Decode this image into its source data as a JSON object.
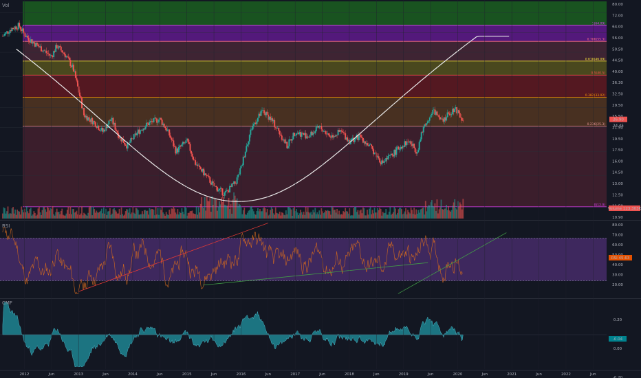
{
  "panes": {
    "price": {
      "label": "Vol"
    },
    "rsi": {
      "label": "RSI"
    },
    "cmf": {
      "label": "CMF"
    }
  },
  "colors": {
    "background": "#131722",
    "candle_up": "#26a69a",
    "candle_down": "#ef5350",
    "cup_curve": "#e8e8e8",
    "rsi_line": "#d2691e",
    "rsi_band": "#4a2d6e",
    "cmf_fill": "#1e7f8c",
    "trend_red": "#e53935",
    "trend_green": "#43a047"
  },
  "fib_levels": [
    {
      "label": "1(64.09)",
      "value": 64.09,
      "color": "#e040fb"
    },
    {
      "label": "0.786(55.3)",
      "value": 55.3,
      "color": "#ff6d8a"
    },
    {
      "label": "0.618(46.09)",
      "value": 46.09,
      "color": "#ffeb3b"
    },
    {
      "label": "0.5(40.5)",
      "value": 40.5,
      "color": "#ff5252"
    },
    {
      "label": "0.382(33.02)",
      "value": 33.02,
      "color": "#ff9800"
    },
    {
      "label": "0.236(25.3)",
      "value": 25.3,
      "color": "#ef9a9a"
    },
    {
      "label": "0(12.0)",
      "value": 12.0,
      "color": "#e040fb"
    }
  ],
  "price_axis": {
    "ticks": [
      "80.00",
      "72.00",
      "64.00",
      "56.00",
      "50.50",
      "44.50",
      "40.00",
      "36.30",
      "32.50",
      "29.50",
      "25.50",
      "21.50",
      "19.50",
      "17.50",
      "16.00",
      "14.50",
      "13.00",
      "12.50",
      "11.50",
      "10.90"
    ],
    "current_price": "26.90",
    "prev_price": "24.45",
    "volume_label": "Volume 123.303K"
  },
  "rsi_axis": {
    "ticks": [
      "80.00",
      "70.00",
      "60.00",
      "50.00",
      "40.00",
      "30.00",
      "20.00"
    ],
    "current": "RSI 45.63"
  },
  "cmf_axis": {
    "ticks": [
      "0.20",
      "0.00",
      "-0.20"
    ],
    "current": "-0.04"
  },
  "time_axis": [
    "2012",
    "Jun",
    "2013",
    "Jun",
    "2014",
    "Jun",
    "2015",
    "Jun",
    "2016",
    "Jun",
    "2017",
    "Jun",
    "2018",
    "Jun",
    "2019",
    "Jun",
    "2020",
    "Jun",
    "2021",
    "Jun",
    "2022",
    "Jun"
  ],
  "chart_data": {
    "type": "candlestick",
    "price_range": [
      10.9,
      80.0
    ],
    "close_path": [
      [
        2011.6,
        58
      ],
      [
        2011.75,
        62
      ],
      [
        2011.9,
        64
      ],
      [
        2012.0,
        59
      ],
      [
        2012.15,
        55
      ],
      [
        2012.35,
        51
      ],
      [
        2012.5,
        48
      ],
      [
        2012.6,
        53
      ],
      [
        2012.75,
        49
      ],
      [
        2012.9,
        43
      ],
      [
        2013.0,
        35
      ],
      [
        2013.1,
        28
      ],
      [
        2013.3,
        26
      ],
      [
        2013.45,
        24
      ],
      [
        2013.6,
        27
      ],
      [
        2013.75,
        23
      ],
      [
        2013.9,
        21
      ],
      [
        2014.1,
        24
      ],
      [
        2014.3,
        26
      ],
      [
        2014.5,
        27
      ],
      [
        2014.65,
        24
      ],
      [
        2014.8,
        20
      ],
      [
        2015.0,
        22
      ],
      [
        2015.15,
        18
      ],
      [
        2015.35,
        16
      ],
      [
        2015.5,
        14.5
      ],
      [
        2015.7,
        13.5
      ],
      [
        2015.9,
        15
      ],
      [
        2016.0,
        17
      ],
      [
        2016.2,
        25
      ],
      [
        2016.4,
        29
      ],
      [
        2016.55,
        27
      ],
      [
        2016.7,
        24
      ],
      [
        2016.85,
        21
      ],
      [
        2017.0,
        24
      ],
      [
        2017.25,
        23
      ],
      [
        2017.45,
        25
      ],
      [
        2017.65,
        23
      ],
      [
        2017.85,
        24
      ],
      [
        2018.0,
        22
      ],
      [
        2018.2,
        23
      ],
      [
        2018.45,
        20
      ],
      [
        2018.6,
        18
      ],
      [
        2018.75,
        19
      ],
      [
        2018.95,
        21
      ],
      [
        2019.1,
        22
      ],
      [
        2019.25,
        20
      ],
      [
        2019.4,
        26
      ],
      [
        2019.55,
        29
      ],
      [
        2019.75,
        27
      ],
      [
        2019.95,
        30
      ],
      [
        2020.05,
        28
      ],
      [
        2020.1,
        26.9
      ]
    ],
    "rsi_range": [
      15,
      85
    ],
    "rsi_band": [
      30,
      70
    ],
    "cmf_range": [
      -0.3,
      0.3
    ]
  }
}
